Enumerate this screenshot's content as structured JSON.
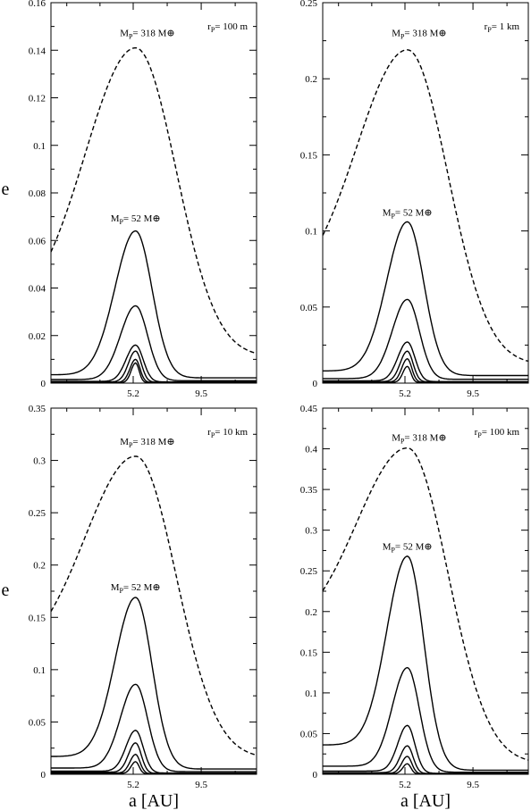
{
  "figure": {
    "ylabel": "e",
    "xlabel": "a [AU]"
  },
  "chart_data": [
    {
      "type": "line",
      "panel_label": "r_P= 100 m",
      "label_main": "r",
      "label_sub": "P",
      "label_tail": "= 100 m",
      "xlim": [
        0,
        13
      ],
      "ylim": [
        0,
        0.16
      ],
      "yticks": [
        0,
        0.02,
        0.04,
        0.06,
        0.08,
        0.1,
        0.12,
        0.14,
        0.16
      ],
      "ytick_labels": [
        "0",
        "0.02",
        "0.04",
        "0.06",
        "0.08",
        "0.1",
        "0.12",
        "0.14",
        "0.16"
      ],
      "xticks": [
        5.2,
        9.5
      ],
      "xtick_labels": [
        "5.2",
        "9.5"
      ],
      "annotations": [
        {
          "text": "M_P= 318 M_⊕",
          "main": "M",
          "sub": "P",
          "tail": "= 318 M",
          "sym": "⊕",
          "x": 6.1,
          "y": 0.146
        },
        {
          "text": "M_P= 52 M_⊕",
          "main": "M",
          "sub": "P",
          "tail": "= 52 M",
          "sym": "⊕",
          "x": 5.35,
          "y": 0.068
        }
      ],
      "series": [
        {
          "dashed": true,
          "peak": 0.141,
          "base": 0.027,
          "end": 0.011,
          "width": 3.2
        },
        {
          "peak": 0.064,
          "base": 0.0035,
          "end": 0.0022,
          "width": 1.3
        },
        {
          "peak": 0.0325,
          "base": 0.0015,
          "end": 0.001,
          "width": 0.95
        },
        {
          "peak": 0.016,
          "base": 0.0007,
          "end": 0.0005,
          "width": 0.6
        },
        {
          "peak": 0.0135,
          "base": 0.0005,
          "end": 0.0004,
          "width": 0.45
        },
        {
          "peak": 0.01,
          "base": 0.0003,
          "end": 0.0003,
          "width": 0.35
        },
        {
          "peak": 0.0085,
          "base": 0.0002,
          "end": 0.0002,
          "width": 0.28
        }
      ]
    },
    {
      "type": "line",
      "panel_label": "r_P= 1 km",
      "label_main": "r",
      "label_sub": "P",
      "label_tail": "= 1 km",
      "xlim": [
        0,
        13
      ],
      "ylim": [
        0,
        0.25
      ],
      "yticks": [
        0,
        0.05,
        0.1,
        0.15,
        0.2,
        0.25
      ],
      "ytick_labels": [
        "0",
        "0.05",
        "0.1",
        "0.15",
        "0.2",
        "0.25"
      ],
      "xticks": [
        5.2,
        9.5
      ],
      "xtick_labels": [
        "5.2",
        "9.5"
      ],
      "annotations": [
        {
          "text": "M_P= 318 M_⊕",
          "main": "M",
          "sub": "P",
          "tail": "= 318 M",
          "sym": "⊕",
          "x": 6.1,
          "y": 0.228
        },
        {
          "text": "M_P= 52 M_⊕",
          "main": "M",
          "sub": "P",
          "tail": "= 52 M",
          "sym": "⊕",
          "x": 5.35,
          "y": 0.11
        }
      ],
      "series": [
        {
          "dashed": true,
          "peak": 0.219,
          "base": 0.057,
          "end": 0.012,
          "width": 3.2
        },
        {
          "peak": 0.106,
          "base": 0.008,
          "end": 0.005,
          "width": 1.3
        },
        {
          "peak": 0.055,
          "base": 0.003,
          "end": 0.0025,
          "width": 0.95
        },
        {
          "peak": 0.027,
          "base": 0.0015,
          "end": 0.001,
          "width": 0.6
        },
        {
          "peak": 0.021,
          "base": 0.001,
          "end": 0.0008,
          "width": 0.45
        },
        {
          "peak": 0.016,
          "base": 0.0007,
          "end": 0.0006,
          "width": 0.35
        },
        {
          "peak": 0.011,
          "base": 0.0005,
          "end": 0.0004,
          "width": 0.28
        }
      ]
    },
    {
      "type": "line",
      "panel_label": "r_P= 10 km",
      "label_main": "r",
      "label_sub": "P",
      "label_tail": "= 10 km",
      "xlim": [
        0,
        13
      ],
      "ylim": [
        0,
        0.35
      ],
      "yticks": [
        0,
        0.05,
        0.1,
        0.15,
        0.2,
        0.25,
        0.3,
        0.35
      ],
      "ytick_labels": [
        "0",
        "0.05",
        "0.1",
        "0.15",
        "0.2",
        "0.25",
        "0.3",
        "0.35"
      ],
      "xticks": [
        5.2,
        9.5
      ],
      "xtick_labels": [
        "5.2",
        "9.5"
      ],
      "annotations": [
        {
          "text": "M_P= 318 M_⊕",
          "main": "M",
          "sub": "P",
          "tail": "= 318 M",
          "sym": "⊕",
          "x": 6.1,
          "y": 0.315
        },
        {
          "text": "M_P= 52 M_⊕",
          "main": "M",
          "sub": "P",
          "tail": "= 52 M",
          "sym": "⊕",
          "x": 5.35,
          "y": 0.176
        }
      ],
      "series": [
        {
          "dashed": true,
          "peak": 0.304,
          "base": 0.107,
          "end": 0.015,
          "width": 3.2
        },
        {
          "peak": 0.169,
          "base": 0.017,
          "end": 0.005,
          "width": 1.3
        },
        {
          "peak": 0.086,
          "base": 0.006,
          "end": 0.0025,
          "width": 0.95
        },
        {
          "peak": 0.042,
          "base": 0.003,
          "end": 0.0012,
          "width": 0.6
        },
        {
          "peak": 0.03,
          "base": 0.002,
          "end": 0.0009,
          "width": 0.45
        },
        {
          "peak": 0.019,
          "base": 0.0012,
          "end": 0.0006,
          "width": 0.35
        },
        {
          "peak": 0.012,
          "base": 0.0008,
          "end": 0.0004,
          "width": 0.28
        }
      ]
    },
    {
      "type": "line",
      "panel_label": "r_P= 100 km",
      "label_main": "r",
      "label_sub": "P",
      "label_tail": "= 100 km",
      "xlim": [
        0,
        13
      ],
      "ylim": [
        0,
        0.45
      ],
      "yticks": [
        0,
        0.05,
        0.1,
        0.15,
        0.2,
        0.25,
        0.3,
        0.35,
        0.4,
        0.45
      ],
      "ytick_labels": [
        "0",
        "0.05",
        "0.1",
        "0.15",
        "0.2",
        "0.25",
        "0.3",
        "0.35",
        "0.4",
        "0.45"
      ],
      "xticks": [
        5.2,
        9.5
      ],
      "xtick_labels": [
        "5.2",
        "9.5"
      ],
      "annotations": [
        {
          "text": "M_P= 318 M_⊕",
          "main": "M",
          "sub": "P",
          "tail": "= 318 M",
          "sym": "⊕",
          "x": 6.1,
          "y": 0.41
        },
        {
          "text": "M_P= 52 M_⊕",
          "main": "M",
          "sub": "P",
          "tail": "= 52 M",
          "sym": "⊕",
          "x": 5.35,
          "y": 0.276
        }
      ],
      "series": [
        {
          "dashed": true,
          "peak": 0.401,
          "base": 0.168,
          "end": 0.013,
          "width": 3.2
        },
        {
          "peak": 0.268,
          "base": 0.036,
          "end": 0.005,
          "width": 1.3
        },
        {
          "peak": 0.131,
          "base": 0.01,
          "end": 0.0025,
          "width": 0.95
        },
        {
          "peak": 0.06,
          "base": 0.004,
          "end": 0.0012,
          "width": 0.6
        },
        {
          "peak": 0.035,
          "base": 0.002,
          "end": 0.0009,
          "width": 0.45
        },
        {
          "peak": 0.022,
          "base": 0.0012,
          "end": 0.0006,
          "width": 0.35
        },
        {
          "peak": 0.013,
          "base": 0.0008,
          "end": 0.0004,
          "width": 0.28
        }
      ]
    }
  ]
}
